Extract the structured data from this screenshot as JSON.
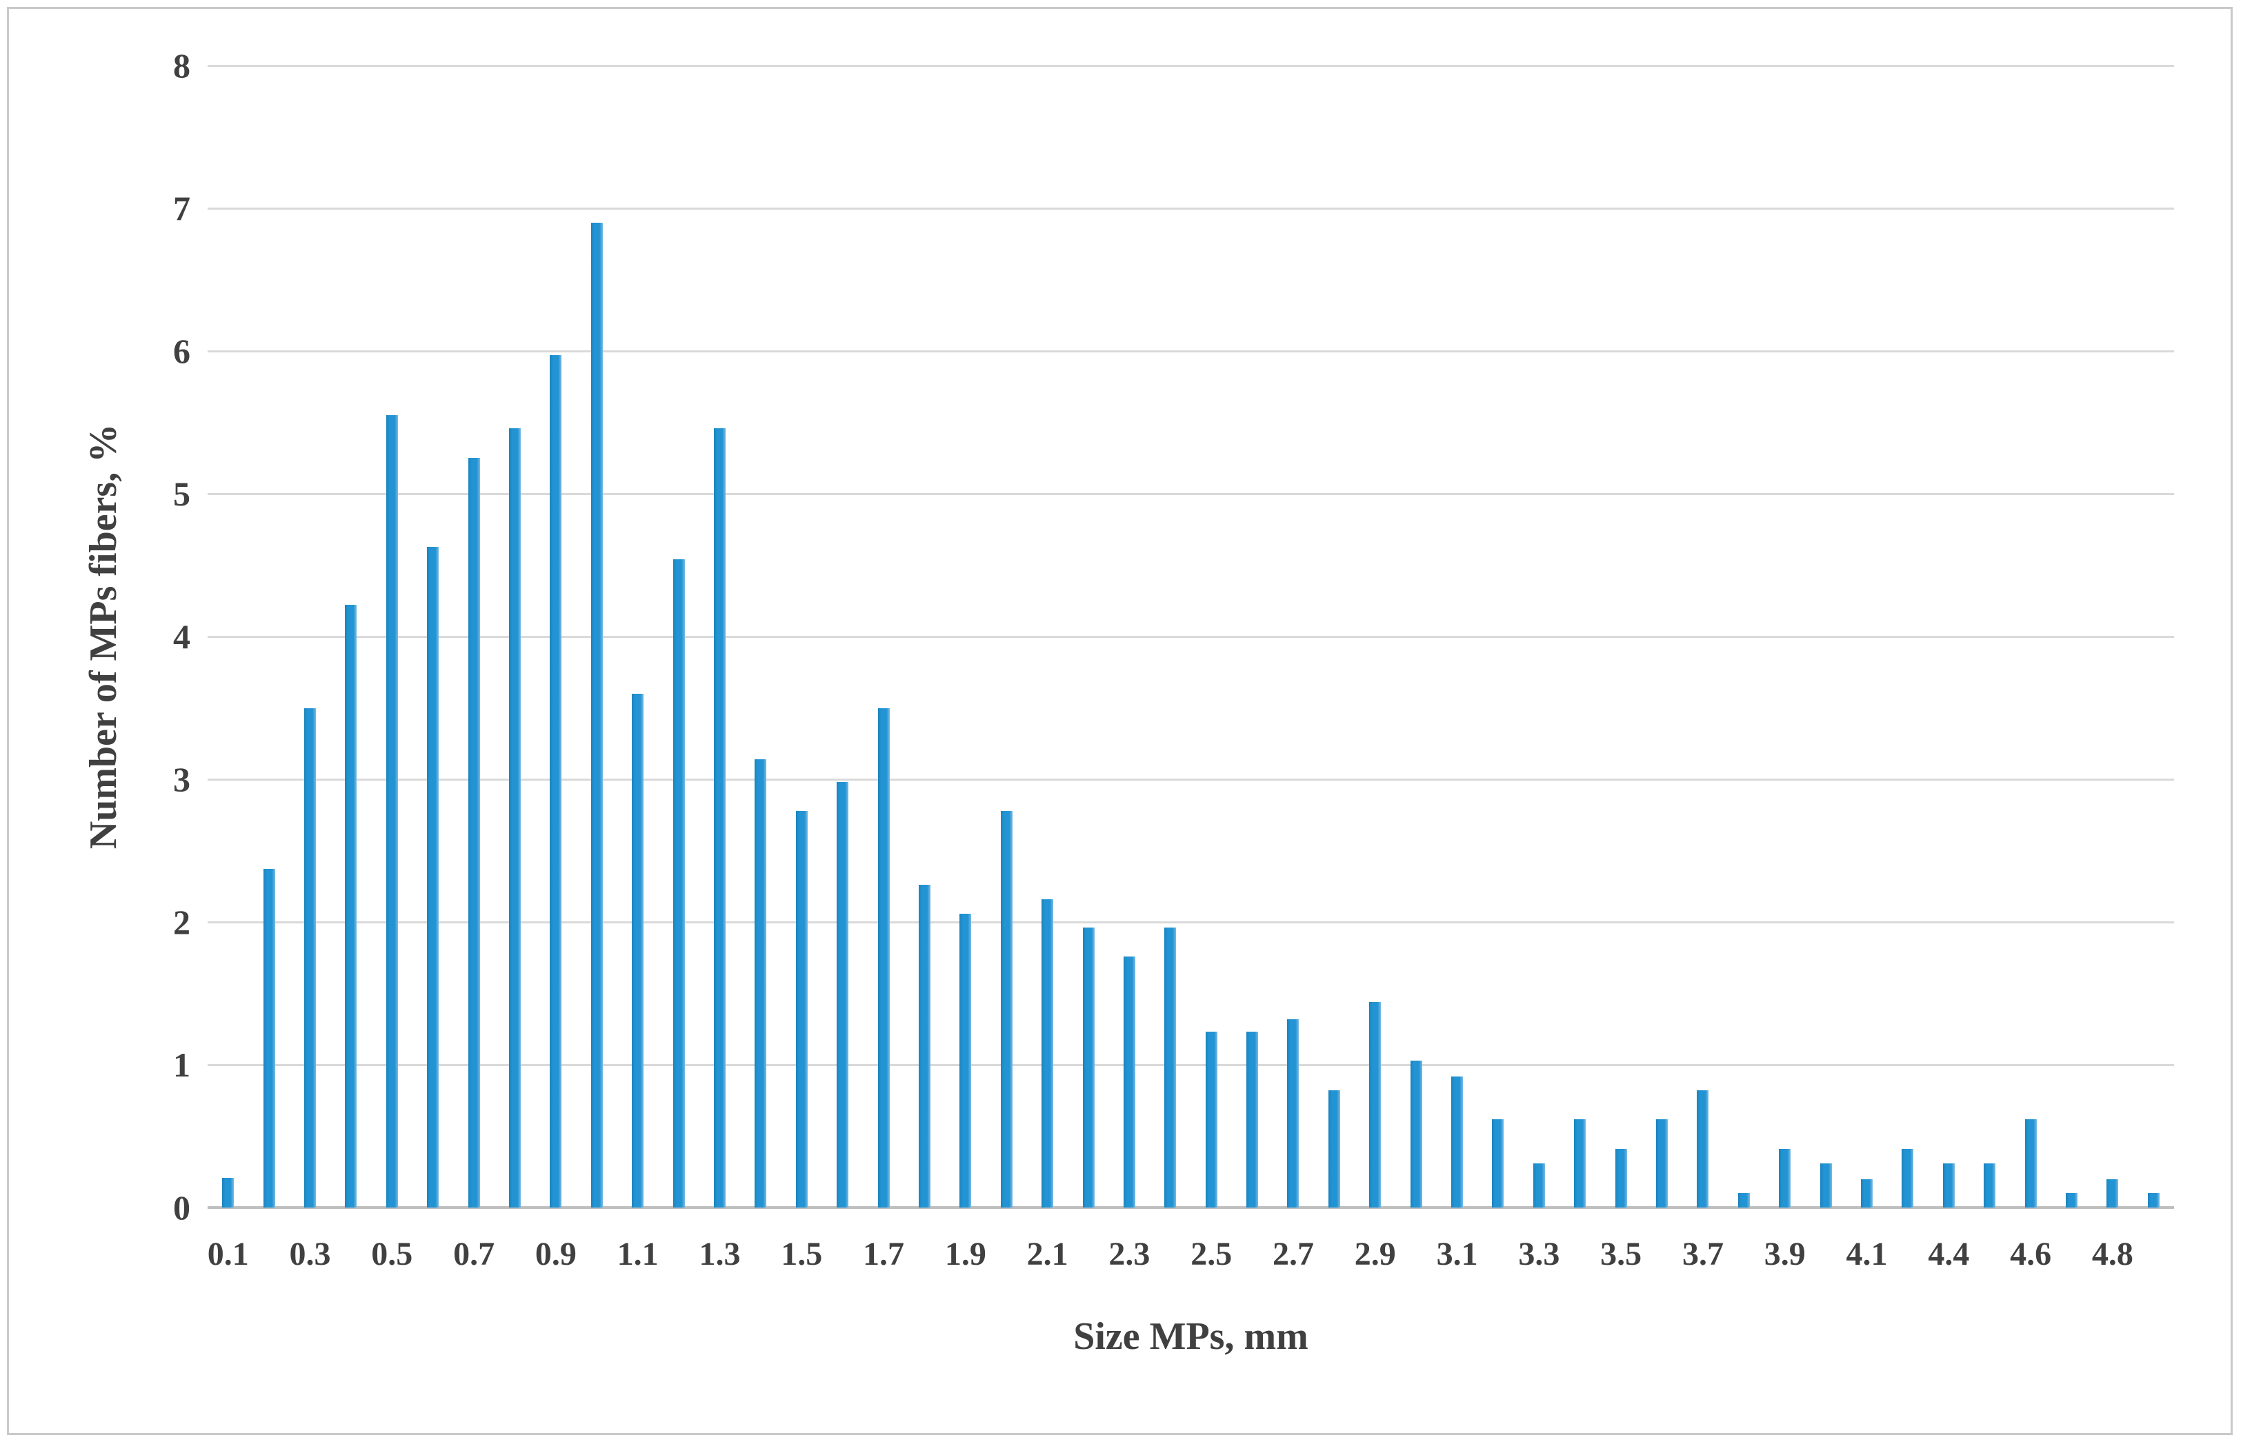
{
  "figure": {
    "background": "#ffffff",
    "border_color": "#c9c9c9"
  },
  "chart_data": {
    "type": "bar",
    "title": "",
    "xlabel": "Size MPs, mm",
    "ylabel": "Number of MPs fibers, %",
    "categories": [
      "0.1",
      "0.2",
      "0.3",
      "0.4",
      "0.5",
      "0.6",
      "0.7",
      "0.8",
      "0.9",
      "1.0",
      "1.1",
      "1.2",
      "1.3",
      "1.4",
      "1.5",
      "1.6",
      "1.7",
      "1.8",
      "1.9",
      "2.0",
      "2.1",
      "2.2",
      "2.3",
      "2.4",
      "2.5",
      "2.6",
      "2.7",
      "2.8",
      "2.9",
      "3.0",
      "3.1",
      "3.2",
      "3.3",
      "3.4",
      "3.5",
      "3.6",
      "3.7",
      "3.8",
      "3.9",
      "4.0",
      "4.1",
      "4.2",
      "4.4",
      "4.5",
      "4.6",
      "4.7",
      "4.8",
      "4.9"
    ],
    "values": [
      0.21,
      2.37,
      3.5,
      4.22,
      5.55,
      4.63,
      5.25,
      5.46,
      5.97,
      6.9,
      3.6,
      4.54,
      5.46,
      3.14,
      2.78,
      2.98,
      3.5,
      2.26,
      2.06,
      2.78,
      2.16,
      1.96,
      1.76,
      1.96,
      1.23,
      1.23,
      1.32,
      0.82,
      1.44,
      1.03,
      0.92,
      0.62,
      0.31,
      0.62,
      0.41,
      0.62,
      0.82,
      0.1,
      0.41,
      0.31,
      0.2,
      0.41,
      0.31,
      0.31,
      0.62,
      0.1,
      0.2,
      0.1
    ],
    "ylim": [
      0,
      8
    ],
    "yticks": [
      0,
      1,
      2,
      3,
      4,
      5,
      6,
      7,
      8
    ],
    "x_tick_label_every": 2,
    "grid": true,
    "legend": false,
    "bar_color": "#2293d3",
    "bar_edge_dark": "#1b83bd",
    "bar_edge_light": "#79bae4",
    "gridline_color": "#d9d9d9",
    "axis_line_color": "#bfbfbf",
    "text_color": "#404040"
  }
}
